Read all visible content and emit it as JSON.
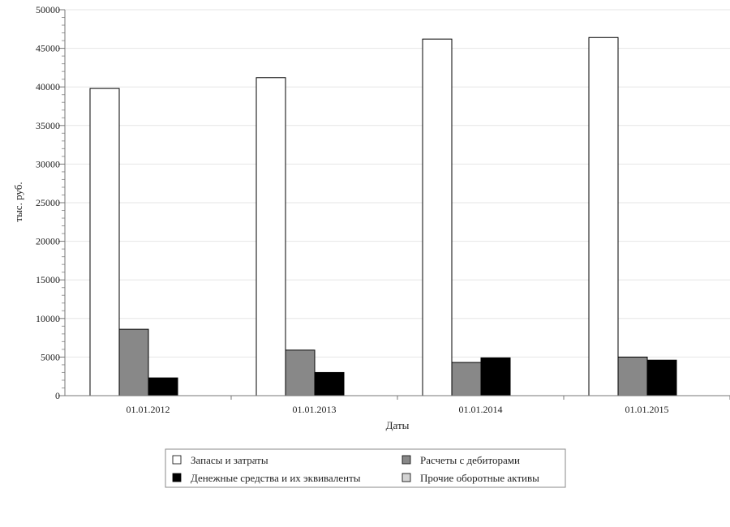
{
  "chart_data": {
    "type": "bar",
    "categories": [
      "01.01.2012",
      "01.01.2013",
      "01.01.2014",
      "01.01.2015"
    ],
    "series": [
      {
        "name": "Запасы и затраты",
        "values": [
          39800,
          41200,
          46200,
          46400
        ],
        "color": "#ffffff"
      },
      {
        "name": "Расчеты с дебиторами",
        "values": [
          8600,
          5900,
          4300,
          5000
        ],
        "color": "#888888"
      },
      {
        "name": "Денежные средства и их эквиваленты",
        "values": [
          2300,
          3000,
          4900,
          4600
        ],
        "color": "#000000"
      },
      {
        "name": "Прочие оборотные активы",
        "values": [
          0,
          0,
          0,
          0
        ],
        "color": "#d3d3d3"
      }
    ],
    "title": "",
    "xlabel": "Даты",
    "ylabel": "тыс. руб.",
    "ylim": [
      0,
      50000
    ],
    "ytick_labels": [
      "0",
      "5000",
      "10000",
      "15000",
      "20000",
      "25000",
      "30000",
      "35000",
      "40000",
      "45000",
      "50000"
    ],
    "grid": true,
    "legend_position": "bottom"
  }
}
